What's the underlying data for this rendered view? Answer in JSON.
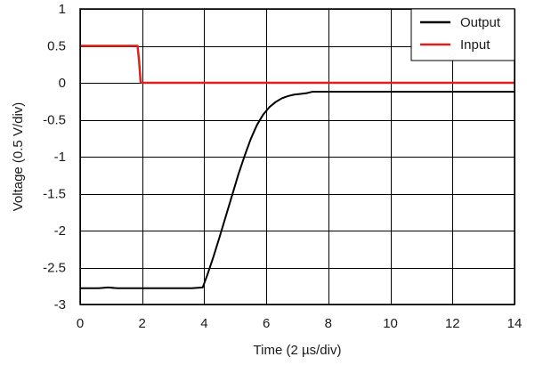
{
  "chart_data": {
    "type": "line",
    "title": "",
    "xlabel": "Time (2 µs/div)",
    "ylabel": "Voltage (0.5 V/div)",
    "xlim": [
      0,
      14
    ],
    "ylim": [
      -3,
      1
    ],
    "x_ticks": [
      0,
      2,
      4,
      6,
      8,
      10,
      12,
      14
    ],
    "x_tick_labels": [
      "0",
      "2",
      "4",
      "6",
      "8",
      "10",
      "12",
      "14"
    ],
    "y_ticks": [
      1,
      0.5,
      0,
      -0.5,
      -1,
      -1.5,
      -2,
      -2.5,
      -3
    ],
    "y_tick_labels": [
      "1",
      "0.5",
      "0",
      "-0.5",
      "-1",
      "-1.5",
      "-2",
      "-2.5",
      "-3"
    ],
    "grid": true,
    "legend_position": "top-right",
    "series": [
      {
        "name": "Output",
        "color": "#000000",
        "x": [
          0,
          0.3,
          0.6,
          0.9,
          1.2,
          1.5,
          1.8,
          2.1,
          2.4,
          2.7,
          3.0,
          3.3,
          3.6,
          3.95,
          4.1,
          4.3,
          4.5,
          4.7,
          4.9,
          5.1,
          5.3,
          5.5,
          5.7,
          5.9,
          6.1,
          6.3,
          6.5,
          6.7,
          6.9,
          7.1,
          7.3,
          7.5,
          8,
          9,
          10,
          11,
          12,
          13,
          14
        ],
        "values": [
          -2.78,
          -2.78,
          -2.78,
          -2.77,
          -2.78,
          -2.78,
          -2.78,
          -2.78,
          -2.78,
          -2.78,
          -2.78,
          -2.78,
          -2.78,
          -2.77,
          -2.6,
          -2.35,
          -2.08,
          -1.8,
          -1.52,
          -1.24,
          -0.99,
          -0.76,
          -0.57,
          -0.43,
          -0.33,
          -0.26,
          -0.21,
          -0.18,
          -0.16,
          -0.15,
          -0.14,
          -0.12,
          -0.12,
          -0.12,
          -0.12,
          -0.12,
          -0.12,
          -0.12,
          -0.12
        ]
      },
      {
        "name": "Input",
        "color": "#e0201b",
        "x": [
          0,
          1.85,
          1.9,
          1.95,
          2.0,
          14
        ],
        "values": [
          0.5,
          0.5,
          0.3,
          0.01,
          0.0,
          0.0
        ]
      }
    ]
  }
}
